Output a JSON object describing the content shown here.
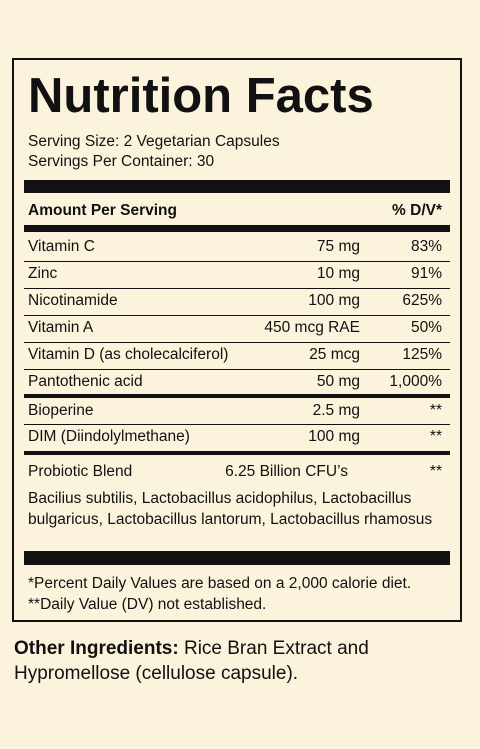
{
  "title": "Nutrition Facts",
  "serving_size": "Serving Size: 2 Vegetarian Capsules",
  "servings_per_container": "Servings Per Container:  30",
  "header": {
    "amount": "Amount Per Serving",
    "dv": "% D/V*"
  },
  "rows": [
    {
      "name": "Vitamin C",
      "amount": "75 mg",
      "dv": "83%"
    },
    {
      "name": "Zinc",
      "amount": "10 mg",
      "dv": "91%"
    },
    {
      "name": "Nicotinamide",
      "amount": "100 mg",
      "dv": "625%"
    },
    {
      "name": "Vitamin A",
      "amount": "450 mcg RAE",
      "dv": "50%"
    },
    {
      "name": "Vitamin D (as cholecalciferol)",
      "amount": "25 mcg",
      "dv": "125%"
    },
    {
      "name": "Pantothenic acid",
      "amount": "50 mg",
      "dv": "1,000%"
    },
    {
      "name": "Bioperine",
      "amount": "2.5 mg",
      "dv": "**"
    },
    {
      "name": "DIM (Diindolylmethane)",
      "amount": "100 mg",
      "dv": "**"
    },
    {
      "name": "Probiotic Blend",
      "amount": "6.25 Billion CFU’s",
      "dv": "**"
    }
  ],
  "blend_strains": "Bacilius subtilis, Lactobacillus acidophilus, Lactobacillus bulgaricus, Lactobacillus lantorum, Lactobacillus rhamosus",
  "footnotes": [
    "*Percent Daily Values are based on a 2,000 calorie diet.",
    "**Daily Value (DV) not established."
  ],
  "other_ingredients": {
    "label": "Other Ingredients:",
    "text": " Rice Bran Extract and Hypromellose (cellulose capsule)."
  }
}
